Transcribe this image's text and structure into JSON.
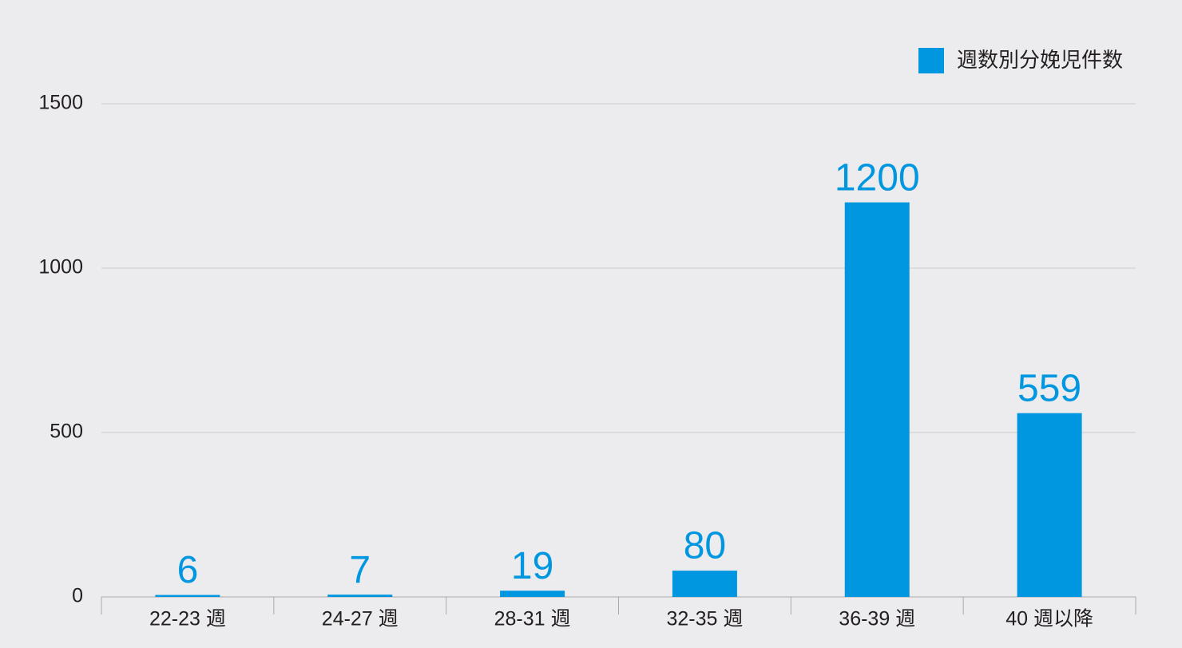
{
  "chart_data": {
    "type": "bar",
    "categories": [
      "22-23 週",
      "24-27 週",
      "28-31 週",
      "32-35 週",
      "36-39 週",
      "40 週以降"
    ],
    "series": [
      {
        "name": "週数別分娩児件数",
        "color": "#0096e0",
        "values": [
          6,
          7,
          19,
          80,
          1200,
          559
        ]
      }
    ],
    "ylim": [
      0,
      1500
    ],
    "yticks": [
      0,
      500,
      1000,
      1500
    ],
    "grid": true,
    "legend": "top-right"
  }
}
